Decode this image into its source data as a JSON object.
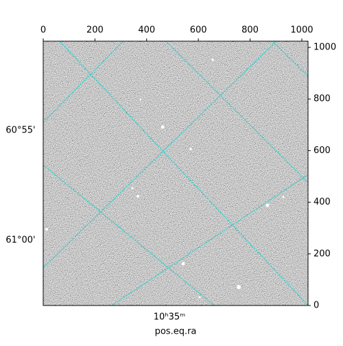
{
  "chart_data": {
    "type": "image",
    "xlim": [
      0,
      1024
    ],
    "ylim": [
      0,
      1024
    ],
    "xticks": [
      0,
      200,
      400,
      600,
      800,
      1000
    ],
    "yticks": [
      0,
      200,
      400,
      600,
      800,
      1000
    ],
    "xlabel": "pos.eq.ra",
    "wcs_dec_ticks": [
      "60°55'",
      "61°00'"
    ],
    "wcs_ra_ticks": [
      "10ʰ35ᵐ"
    ],
    "grid_color": "#33cccc"
  }
}
